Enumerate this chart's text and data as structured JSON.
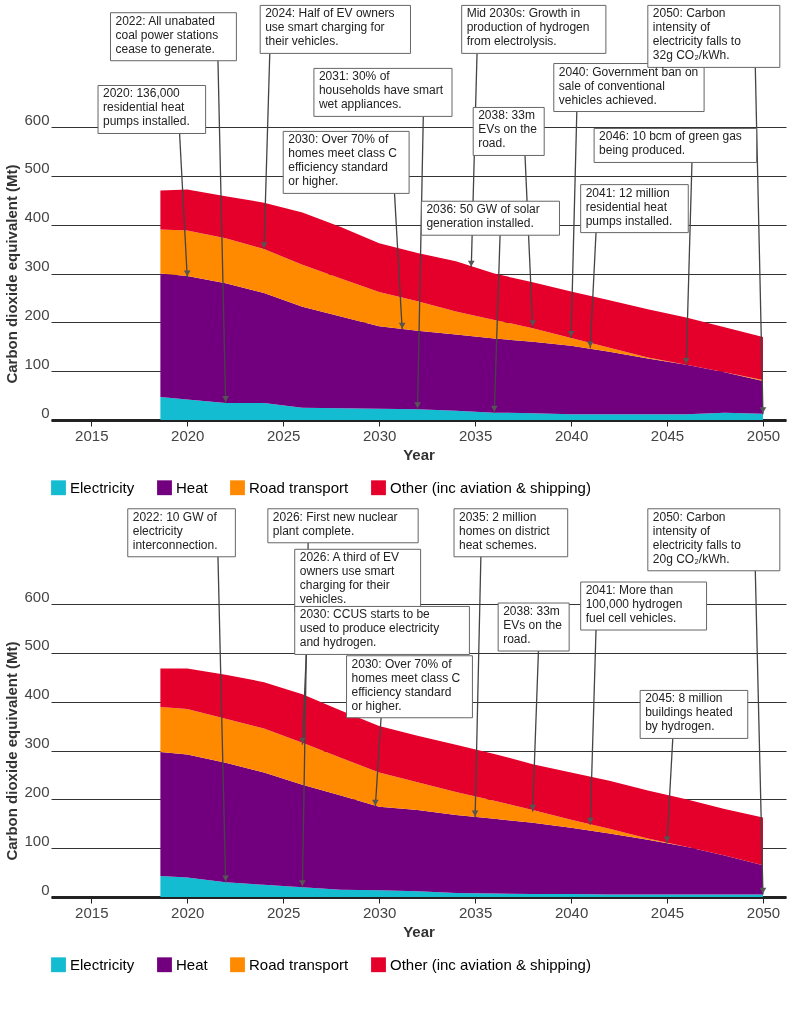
{
  "chart_data": [
    {
      "type": "area",
      "stacked": true,
      "xlabel": "Year",
      "ylabel": "Carbon dioxide equivalent (Mt)",
      "x": [
        2018.6,
        2020,
        2022,
        2024,
        2026,
        2028,
        2030,
        2032,
        2034,
        2036,
        2038,
        2040,
        2042,
        2044,
        2046,
        2048,
        2050
      ],
      "series": [
        {
          "name": "Electricity",
          "color": "#14bcd2",
          "values": [
            47,
            42,
            35,
            35,
            25,
            24,
            23,
            22,
            19,
            15,
            14,
            12,
            12,
            12,
            12,
            15,
            13
          ]
        },
        {
          "name": "Heat",
          "color": "#72007e",
          "values": [
            253,
            253,
            245,
            225,
            207,
            188,
            169,
            161,
            156,
            152,
            146,
            140,
            128,
            114,
            101,
            83,
            67
          ]
        },
        {
          "name": "Road transport",
          "color": "#ff8a00",
          "values": [
            90,
            93,
            92,
            90,
            86,
            78,
            70,
            60,
            47,
            38,
            28,
            16,
            8,
            2,
            0,
            0,
            2
          ]
        },
        {
          "name": "Other (inc aviation & shipping)",
          "color": "#e4002b",
          "values": [
            80,
            84,
            86,
            95,
            107,
            105,
            100,
            99,
            103,
            95,
            94,
            95,
            97,
            99,
            97,
            92,
            88
          ]
        }
      ],
      "xlim": [
        2012.9,
        2051.2
      ],
      "ylim": [
        0,
        600
      ],
      "xticks": [
        2015,
        2020,
        2025,
        2030,
        2035,
        2040,
        2045,
        2050
      ],
      "yticks": [
        0,
        100,
        200,
        300,
        400,
        500,
        600
      ],
      "grid": "y",
      "legend": "bottom",
      "annotations": [
        {
          "text": "2020: 136,000 residential heat pumps installed.",
          "x": 2020,
          "y": 292
        },
        {
          "text": "2022: All unabated coal power stations cease to generate.",
          "x": 2022,
          "y": 35
        },
        {
          "text": "2024: Half of EV owners use smart charging for their vehicles.",
          "x": 2024,
          "y": 350
        },
        {
          "text": "2030: Over 70% of homes meet class C efficiency standard or higher.",
          "x": 2031.2,
          "y": 185
        },
        {
          "text": "2031: 30% of households have smart wet appliances.",
          "x": 2032,
          "y": 22
        },
        {
          "text": "Mid 2030s: Growth in production of hydrogen from electrolysis.",
          "x": 2034.8,
          "y": 312
        },
        {
          "text": "2036: 50 GW of solar generation installed.",
          "x": 2036,
          "y": 15
        },
        {
          "text": "2038: 33m EVs on the road.",
          "x": 2038,
          "y": 190
        },
        {
          "text": "2040: Government ban on sale of conventional vehicles achieved.",
          "x": 2040,
          "y": 168
        },
        {
          "text": "2041: 12 million residential heat pumps installed.",
          "x": 2041,
          "y": 147
        },
        {
          "text": "2046: 10 bcm of green gas being produced.",
          "x": 2046,
          "y": 113
        },
        {
          "text": "2050: Carbon intensity of electricity falls to 32g CO₂/kWh.",
          "x": 2050,
          "y": 12
        }
      ]
    },
    {
      "type": "area",
      "stacked": true,
      "xlabel": "Year",
      "ylabel": "Carbon dioxide equivalent (Mt)",
      "x": [
        2018.6,
        2020,
        2022,
        2024,
        2026,
        2028,
        2030,
        2032,
        2034,
        2036,
        2038,
        2040,
        2042,
        2044,
        2046,
        2048,
        2050
      ],
      "series": [
        {
          "name": "Electricity",
          "color": "#14bcd2",
          "values": [
            43,
            40,
            30,
            25,
            20,
            15,
            14,
            12,
            8,
            7,
            6,
            6,
            5,
            5,
            5,
            5,
            5
          ]
        },
        {
          "name": "Heat",
          "color": "#72007e",
          "values": [
            254,
            252,
            245,
            230,
            210,
            193,
            171,
            166,
            160,
            153,
            146,
            136,
            125,
            112,
            98,
            80,
            60
          ]
        },
        {
          "name": "Road transport",
          "color": "#ff8a00",
          "values": [
            92,
            93,
            90,
            90,
            86,
            77,
            70,
            57,
            47,
            37,
            26,
            16,
            10,
            3,
            0,
            0,
            0
          ]
        },
        {
          "name": "Other (inc aviation & shipping)",
          "color": "#e4002b",
          "values": [
            79,
            83,
            90,
            95,
            99,
            97,
            95,
            95,
            97,
            96,
            94,
            97,
            98,
            98,
            97,
            95,
            98
          ]
        }
      ],
      "xlim": [
        2012.9,
        2051.2
      ],
      "ylim": [
        0,
        600
      ],
      "xticks": [
        2015,
        2020,
        2025,
        2030,
        2035,
        2040,
        2045,
        2050
      ],
      "yticks": [
        0,
        100,
        200,
        300,
        400,
        500,
        600
      ],
      "grid": "y",
      "legend": "bottom",
      "annotations": [
        {
          "text": "2022: 10 GW of electricity interconnection.",
          "x": 2022,
          "y": 30
        },
        {
          "text": "2026: First new nuclear plant complete.",
          "x": 2026,
          "y": 20
        },
        {
          "text": "2026: A third of EV owners use smart charging for their vehicles.",
          "x": 2026,
          "y": 312
        },
        "2030: CCUS starts to be used to produce electricity and hydrogen.",
        {
          "text": "2030: Over 70% of homes meet class C efficiency standard or higher.",
          "x": 2029.8,
          "y": 185
        },
        {
          "text": "2035: 2 million homes on district heat schemes.",
          "x": 2035,
          "y": 163
        },
        {
          "text": "2038: 33m EVs on the road.",
          "x": 2038,
          "y": 175
        },
        {
          "text": "2041: More than 100,000 hydrogen fuel cell vehicles.",
          "x": 2041,
          "y": 148
        },
        {
          "text": "2045: 8 million buildings heated by hydrogen.",
          "x": 2045,
          "y": 110
        },
        {
          "text": "2050: Carbon intensity of electricity falls to 20g CO₂/kWh.",
          "x": 2050,
          "y": 5
        }
      ]
    }
  ]
}
